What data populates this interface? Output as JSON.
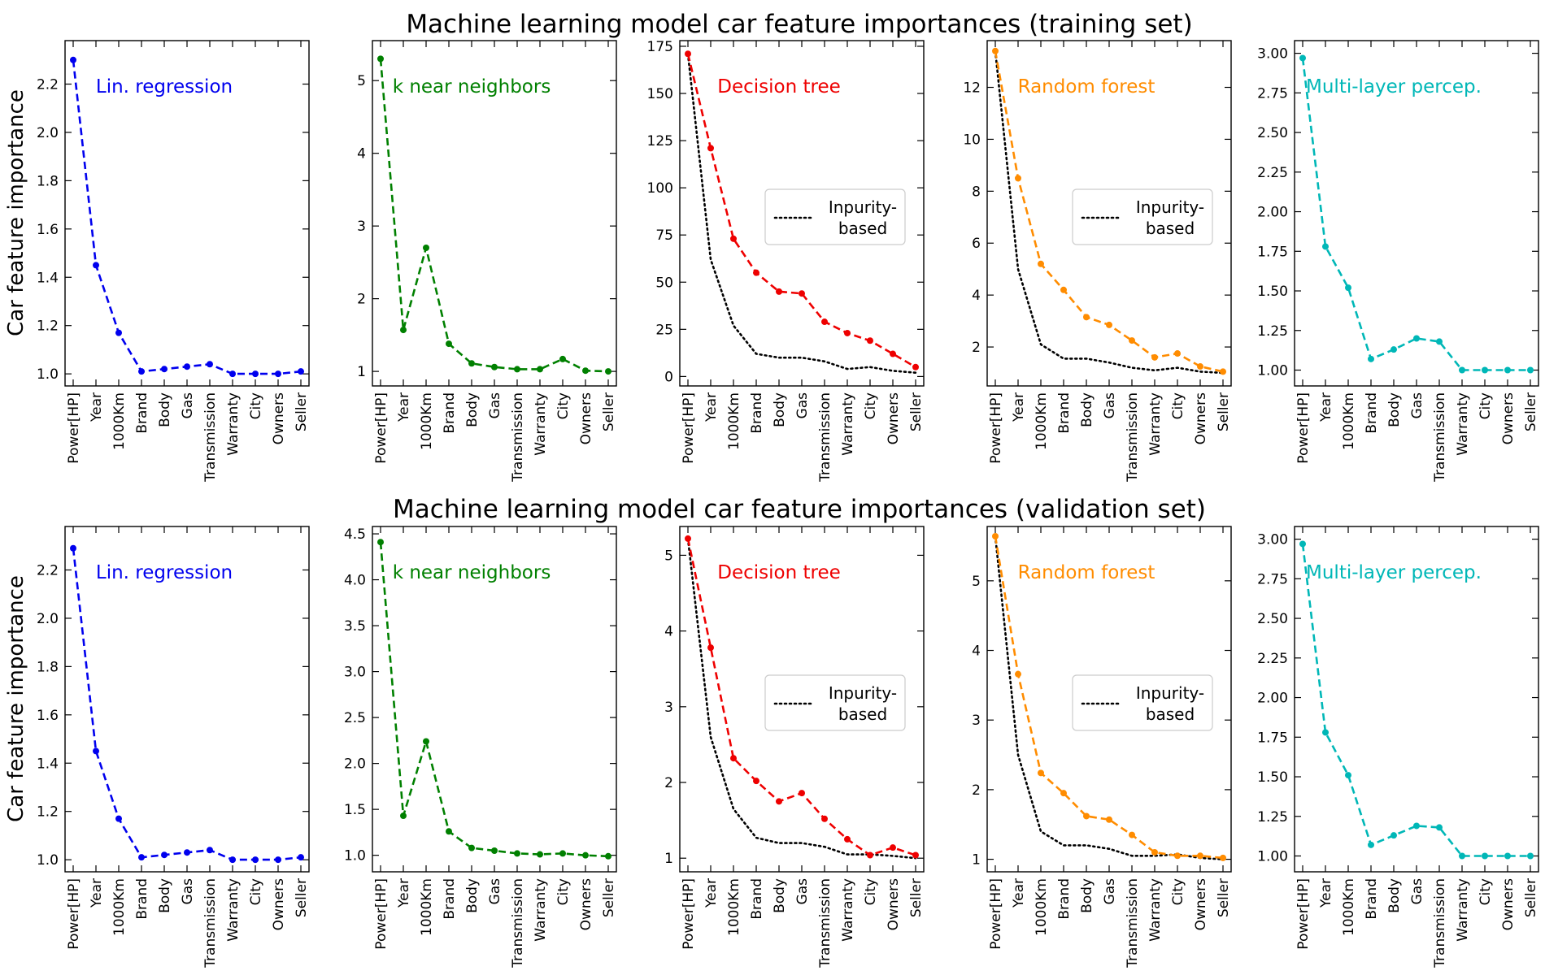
{
  "figure": {
    "row_titles": [
      "Machine learning model car feature importances (training set)",
      "Machine learning model car feature importances (validation set)"
    ],
    "ylabel": "Car feature importance",
    "legend": {
      "line1": "Inpurity-",
      "line2": "based"
    }
  },
  "chart_data": [
    {
      "type": "line",
      "row": 0,
      "col": 0,
      "label": "Lin. regression",
      "color": "#0000ee",
      "categories": [
        "Power[HP]",
        "Year",
        "1000Km",
        "Brand",
        "Body",
        "Gas",
        "Transmission",
        "Warranty",
        "City",
        "Owners",
        "Seller"
      ],
      "series": [
        {
          "values": [
            2.3,
            1.45,
            1.17,
            1.01,
            1.02,
            1.03,
            1.04,
            1.0,
            1.0,
            1.0,
            1.01
          ]
        }
      ],
      "ylim": [
        0.95,
        2.38
      ],
      "yticks": [
        1.0,
        1.2,
        1.4,
        1.6,
        1.8,
        2.0,
        2.2
      ],
      "tickfmt": 1
    },
    {
      "type": "line",
      "row": 0,
      "col": 1,
      "label": "k near neighbors",
      "color": "#008000",
      "categories": [
        "Power[HP]",
        "Year",
        "1000Km",
        "Brand",
        "Body",
        "Gas",
        "Transmission",
        "Warranty",
        "City",
        "Owners",
        "Seller"
      ],
      "series": [
        {
          "values": [
            5.3,
            1.57,
            2.7,
            1.38,
            1.11,
            1.06,
            1.03,
            1.03,
            1.17,
            1.01,
            1.0
          ]
        }
      ],
      "ylim": [
        0.8,
        5.55
      ],
      "yticks": [
        1,
        2,
        3,
        4,
        5
      ],
      "tickfmt": 0
    },
    {
      "type": "line",
      "row": 0,
      "col": 2,
      "label": "Decision tree",
      "color": "#ee0000",
      "categories": [
        "Power[HP]",
        "Year",
        "1000Km",
        "Brand",
        "Body",
        "Gas",
        "Transmission",
        "Warranty",
        "City",
        "Owners",
        "Seller"
      ],
      "series": [
        {
          "values": [
            171,
            121,
            73,
            55,
            45,
            44,
            29,
            23,
            19,
            12,
            5
          ]
        },
        {
          "name": "Inpurity-based",
          "style": "dotted",
          "values": [
            171,
            62,
            27,
            12,
            10,
            10,
            8,
            4,
            5,
            3,
            2
          ]
        }
      ],
      "ylim": [
        -5,
        178
      ],
      "yticks": [
        0,
        25,
        50,
        75,
        100,
        125,
        150,
        175
      ],
      "tickfmt": 0,
      "legend": "center-right"
    },
    {
      "type": "line",
      "row": 0,
      "col": 3,
      "label": "Random forest",
      "color": "#ff8c00",
      "categories": [
        "Power[HP]",
        "Year",
        "1000Km",
        "Brand",
        "Body",
        "Gas",
        "Transmission",
        "Warranty",
        "City",
        "Owners",
        "Seller"
      ],
      "series": [
        {
          "values": [
            13.4,
            8.5,
            5.2,
            4.2,
            3.15,
            2.85,
            2.25,
            1.6,
            1.75,
            1.25,
            1.05
          ]
        },
        {
          "name": "Inpurity-based",
          "style": "dotted",
          "values": [
            13.4,
            5.0,
            2.1,
            1.55,
            1.55,
            1.4,
            1.2,
            1.1,
            1.2,
            1.05,
            1.0
          ]
        }
      ],
      "ylim": [
        0.5,
        13.8
      ],
      "yticks": [
        2,
        4,
        6,
        8,
        10,
        12
      ],
      "tickfmt": 0,
      "legend": "center-right"
    },
    {
      "type": "line",
      "row": 0,
      "col": 4,
      "label": "Multi-layer percep.",
      "color": "#00b7b7",
      "categories": [
        "Power[HP]",
        "Year",
        "1000Km",
        "Brand",
        "Body",
        "Gas",
        "Transmission",
        "Warranty",
        "City",
        "Owners",
        "Seller"
      ],
      "series": [
        {
          "values": [
            2.97,
            1.78,
            1.52,
            1.07,
            1.13,
            1.2,
            1.18,
            1.0,
            1.0,
            1.0,
            1.0
          ]
        }
      ],
      "ylim": [
        0.9,
        3.08
      ],
      "yticks": [
        1.0,
        1.25,
        1.5,
        1.75,
        2.0,
        2.25,
        2.5,
        2.75,
        3.0
      ],
      "tickfmt": 2
    },
    {
      "type": "line",
      "row": 1,
      "col": 0,
      "label": "Lin. regression",
      "color": "#0000ee",
      "categories": [
        "Power[HP]",
        "Year",
        "1000Km",
        "Brand",
        "Body",
        "Gas",
        "Transmission",
        "Warranty",
        "City",
        "Owners",
        "Seller"
      ],
      "series": [
        {
          "values": [
            2.29,
            1.45,
            1.17,
            1.01,
            1.02,
            1.03,
            1.04,
            1.0,
            1.0,
            1.0,
            1.01
          ]
        }
      ],
      "ylim": [
        0.95,
        2.38
      ],
      "yticks": [
        1.0,
        1.2,
        1.4,
        1.6,
        1.8,
        2.0,
        2.2
      ],
      "tickfmt": 1
    },
    {
      "type": "line",
      "row": 1,
      "col": 1,
      "label": "k near neighbors",
      "color": "#008000",
      "categories": [
        "Power[HP]",
        "Year",
        "1000Km",
        "Brand",
        "Body",
        "Gas",
        "Transmission",
        "Warranty",
        "City",
        "Owners",
        "Seller"
      ],
      "series": [
        {
          "values": [
            4.41,
            1.43,
            2.24,
            1.26,
            1.08,
            1.05,
            1.02,
            1.01,
            1.02,
            1.0,
            0.99
          ]
        }
      ],
      "ylim": [
        0.82,
        4.58
      ],
      "yticks": [
        1.0,
        1.5,
        2.0,
        2.5,
        3.0,
        3.5,
        4.0,
        4.5
      ],
      "tickfmt": 1
    },
    {
      "type": "line",
      "row": 1,
      "col": 2,
      "label": "Decision tree",
      "color": "#ee0000",
      "categories": [
        "Power[HP]",
        "Year",
        "1000Km",
        "Brand",
        "Body",
        "Gas",
        "Transmission",
        "Warranty",
        "City",
        "Owners",
        "Seller"
      ],
      "series": [
        {
          "values": [
            5.22,
            3.78,
            2.32,
            2.02,
            1.75,
            1.86,
            1.52,
            1.25,
            1.04,
            1.14,
            1.04
          ]
        },
        {
          "name": "Inpurity-based",
          "style": "dotted",
          "values": [
            5.22,
            2.6,
            1.65,
            1.27,
            1.2,
            1.2,
            1.15,
            1.05,
            1.05,
            1.03,
            1.0
          ]
        }
      ],
      "ylim": [
        0.82,
        5.38
      ],
      "yticks": [
        1,
        2,
        3,
        4,
        5
      ],
      "tickfmt": 0,
      "legend": "center-right"
    },
    {
      "type": "line",
      "row": 1,
      "col": 3,
      "label": "Random forest",
      "color": "#ff8c00",
      "categories": [
        "Power[HP]",
        "Year",
        "1000Km",
        "Brand",
        "Body",
        "Gas",
        "Transmission",
        "Warranty",
        "City",
        "Owners",
        "Seller"
      ],
      "series": [
        {
          "values": [
            5.64,
            3.66,
            2.24,
            1.95,
            1.62,
            1.57,
            1.35,
            1.1,
            1.05,
            1.05,
            1.02
          ]
        },
        {
          "name": "Inpurity-based",
          "style": "dotted",
          "values": [
            5.64,
            2.5,
            1.4,
            1.2,
            1.2,
            1.15,
            1.05,
            1.05,
            1.07,
            1.02,
            1.0
          ]
        }
      ],
      "ylim": [
        0.82,
        5.78
      ],
      "yticks": [
        1,
        2,
        3,
        4,
        5
      ],
      "tickfmt": 0,
      "legend": "center-right"
    },
    {
      "type": "line",
      "row": 1,
      "col": 4,
      "label": "Multi-layer percep.",
      "color": "#00b7b7",
      "categories": [
        "Power[HP]",
        "Year",
        "1000Km",
        "Brand",
        "Body",
        "Gas",
        "Transmission",
        "Warranty",
        "City",
        "Owners",
        "Seller"
      ],
      "series": [
        {
          "values": [
            2.97,
            1.78,
            1.51,
            1.07,
            1.13,
            1.19,
            1.18,
            1.0,
            1.0,
            1.0,
            1.0
          ]
        }
      ],
      "ylim": [
        0.9,
        3.08
      ],
      "yticks": [
        1.0,
        1.25,
        1.5,
        1.75,
        2.0,
        2.25,
        2.5,
        2.75,
        3.0
      ],
      "tickfmt": 2
    }
  ]
}
